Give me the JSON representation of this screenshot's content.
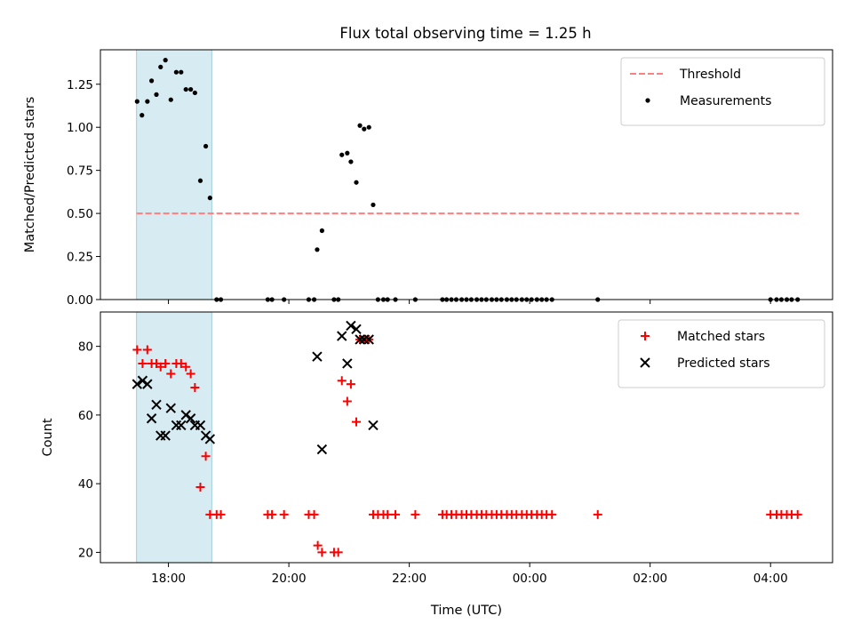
{
  "title": "Flux total observing time = 1.25 h",
  "chart_data": [
    {
      "type": "scatter",
      "panel": "top",
      "ylabel": "Matched/Predicted stars",
      "ylim": [
        0,
        1.45
      ],
      "y_ticks": [
        0.0,
        0.25,
        0.5,
        0.75,
        1.0,
        1.25
      ],
      "y_tick_labels": [
        "0.00",
        "0.25",
        "0.50",
        "0.75",
        "1.00",
        "1.25"
      ],
      "x_ticks_hours": [
        18,
        20,
        22,
        24,
        26,
        28
      ],
      "legend_position": "top-right",
      "highlight_span": {
        "x_start": 17.47,
        "x_end": 18.72,
        "color": "#add8e6"
      },
      "threshold": {
        "name": "Threshold",
        "y": 0.5,
        "x_start": 17.47,
        "x_end": 28.47,
        "color": "#ff7f7f",
        "style": "dashed"
      },
      "series": [
        {
          "name": "Measurements",
          "color": "#000000",
          "marker": "dot",
          "points": [
            [
              17.48,
              1.15
            ],
            [
              17.56,
              1.07
            ],
            [
              17.65,
              1.15
            ],
            [
              17.72,
              1.27
            ],
            [
              17.8,
              1.19
            ],
            [
              17.87,
              1.35
            ],
            [
              17.95,
              1.39
            ],
            [
              18.04,
              1.16
            ],
            [
              18.13,
              1.32
            ],
            [
              18.21,
              1.32
            ],
            [
              18.29,
              1.22
            ],
            [
              18.37,
              1.22
            ],
            [
              18.44,
              1.2
            ],
            [
              18.53,
              0.69
            ],
            [
              18.62,
              0.89
            ],
            [
              18.69,
              0.59
            ],
            [
              18.8,
              0.0
            ],
            [
              18.87,
              0.0
            ],
            [
              19.65,
              0.0
            ],
            [
              19.72,
              0.0
            ],
            [
              19.92,
              0.0
            ],
            [
              20.33,
              0.0
            ],
            [
              20.42,
              0.0
            ],
            [
              20.47,
              0.29
            ],
            [
              20.55,
              0.4
            ],
            [
              20.75,
              0.0
            ],
            [
              20.82,
              0.0
            ],
            [
              20.88,
              0.84
            ],
            [
              20.97,
              0.85
            ],
            [
              21.03,
              0.8
            ],
            [
              21.12,
              0.68
            ],
            [
              21.18,
              1.01
            ],
            [
              21.25,
              0.99
            ],
            [
              21.33,
              1.0
            ],
            [
              21.4,
              0.55
            ],
            [
              21.48,
              0.0
            ],
            [
              21.57,
              0.0
            ],
            [
              21.64,
              0.0
            ],
            [
              21.77,
              0.0
            ],
            [
              22.1,
              0.0
            ],
            [
              22.55,
              0.0
            ],
            [
              22.62,
              0.0
            ],
            [
              22.7,
              0.0
            ],
            [
              22.78,
              0.0
            ],
            [
              22.87,
              0.0
            ],
            [
              22.95,
              0.0
            ],
            [
              23.03,
              0.0
            ],
            [
              23.12,
              0.0
            ],
            [
              23.2,
              0.0
            ],
            [
              23.28,
              0.0
            ],
            [
              23.37,
              0.0
            ],
            [
              23.45,
              0.0
            ],
            [
              23.53,
              0.0
            ],
            [
              23.62,
              0.0
            ],
            [
              23.7,
              0.0
            ],
            [
              23.78,
              0.0
            ],
            [
              23.87,
              0.0
            ],
            [
              23.95,
              0.0
            ],
            [
              24.03,
              0.0
            ],
            [
              24.12,
              0.0
            ],
            [
              24.2,
              0.0
            ],
            [
              24.28,
              0.0
            ],
            [
              24.37,
              0.0
            ],
            [
              25.13,
              0.0
            ],
            [
              28.0,
              0.0
            ],
            [
              28.1,
              0.0
            ],
            [
              28.18,
              0.0
            ],
            [
              28.27,
              0.0
            ],
            [
              28.35,
              0.0
            ],
            [
              28.45,
              0.0
            ]
          ]
        }
      ]
    },
    {
      "type": "scatter",
      "panel": "bottom",
      "xlabel": "Time (UTC)",
      "ylabel": "Count",
      "ylim": [
        17,
        90
      ],
      "xlim": [
        16.87,
        29.03
      ],
      "y_ticks": [
        20,
        40,
        60,
        80
      ],
      "y_tick_labels": [
        "20",
        "40",
        "60",
        "80"
      ],
      "x_ticks_hours": [
        18,
        20,
        22,
        24,
        26,
        28
      ],
      "x_tick_labels": [
        "18:00",
        "20:00",
        "22:00",
        "00:00",
        "02:00",
        "04:00"
      ],
      "legend_position": "top-right",
      "highlight_span": {
        "x_start": 17.47,
        "x_end": 18.72,
        "color": "#add8e6"
      },
      "series": [
        {
          "name": "Matched stars",
          "color": "#ff0000",
          "marker": "plus",
          "points": [
            [
              17.48,
              79
            ],
            [
              17.57,
              75
            ],
            [
              17.65,
              79
            ],
            [
              17.72,
              75
            ],
            [
              17.8,
              75
            ],
            [
              17.87,
              74
            ],
            [
              17.95,
              75
            ],
            [
              18.04,
              72
            ],
            [
              18.13,
              75
            ],
            [
              18.21,
              75
            ],
            [
              18.29,
              74
            ],
            [
              18.37,
              72
            ],
            [
              18.44,
              68
            ],
            [
              18.53,
              39
            ],
            [
              18.62,
              48
            ],
            [
              18.69,
              31
            ],
            [
              18.8,
              31
            ],
            [
              18.87,
              31
            ],
            [
              19.65,
              31
            ],
            [
              19.72,
              31
            ],
            [
              19.92,
              31
            ],
            [
              20.33,
              31
            ],
            [
              20.42,
              31
            ],
            [
              20.48,
              22
            ],
            [
              20.55,
              20
            ],
            [
              20.75,
              20
            ],
            [
              20.82,
              20
            ],
            [
              20.88,
              70
            ],
            [
              20.97,
              64
            ],
            [
              21.03,
              69
            ],
            [
              21.12,
              58
            ],
            [
              21.18,
              82
            ],
            [
              21.25,
              82
            ],
            [
              21.33,
              82
            ],
            [
              21.4,
              31
            ],
            [
              21.48,
              31
            ],
            [
              21.57,
              31
            ],
            [
              21.64,
              31
            ],
            [
              21.77,
              31
            ],
            [
              22.1,
              31
            ],
            [
              22.55,
              31
            ],
            [
              22.62,
              31
            ],
            [
              22.7,
              31
            ],
            [
              22.78,
              31
            ],
            [
              22.87,
              31
            ],
            [
              22.95,
              31
            ],
            [
              23.03,
              31
            ],
            [
              23.12,
              31
            ],
            [
              23.2,
              31
            ],
            [
              23.28,
              31
            ],
            [
              23.37,
              31
            ],
            [
              23.45,
              31
            ],
            [
              23.53,
              31
            ],
            [
              23.62,
              31
            ],
            [
              23.7,
              31
            ],
            [
              23.78,
              31
            ],
            [
              23.87,
              31
            ],
            [
              23.95,
              31
            ],
            [
              24.03,
              31
            ],
            [
              24.12,
              31
            ],
            [
              24.2,
              31
            ],
            [
              24.28,
              31
            ],
            [
              24.37,
              31
            ],
            [
              25.13,
              31
            ],
            [
              28.0,
              31
            ],
            [
              28.1,
              31
            ],
            [
              28.18,
              31
            ],
            [
              28.27,
              31
            ],
            [
              28.35,
              31
            ],
            [
              28.45,
              31
            ]
          ]
        },
        {
          "name": "Predicted stars",
          "color": "#000000",
          "marker": "x",
          "points": [
            [
              17.48,
              69
            ],
            [
              17.57,
              70
            ],
            [
              17.65,
              69
            ],
            [
              17.72,
              59
            ],
            [
              17.8,
              63
            ],
            [
              17.87,
              54
            ],
            [
              17.95,
              54
            ],
            [
              18.04,
              62
            ],
            [
              18.13,
              57
            ],
            [
              18.21,
              57
            ],
            [
              18.29,
              60
            ],
            [
              18.37,
              59
            ],
            [
              18.44,
              57
            ],
            [
              18.53,
              57
            ],
            [
              18.62,
              54
            ],
            [
              18.69,
              53
            ],
            [
              20.47,
              77
            ],
            [
              20.55,
              50
            ],
            [
              20.88,
              83
            ],
            [
              20.97,
              75
            ],
            [
              21.03,
              86
            ],
            [
              21.12,
              85
            ],
            [
              21.18,
              82
            ],
            [
              21.25,
              82
            ],
            [
              21.33,
              82
            ],
            [
              21.4,
              57
            ]
          ]
        }
      ]
    }
  ]
}
